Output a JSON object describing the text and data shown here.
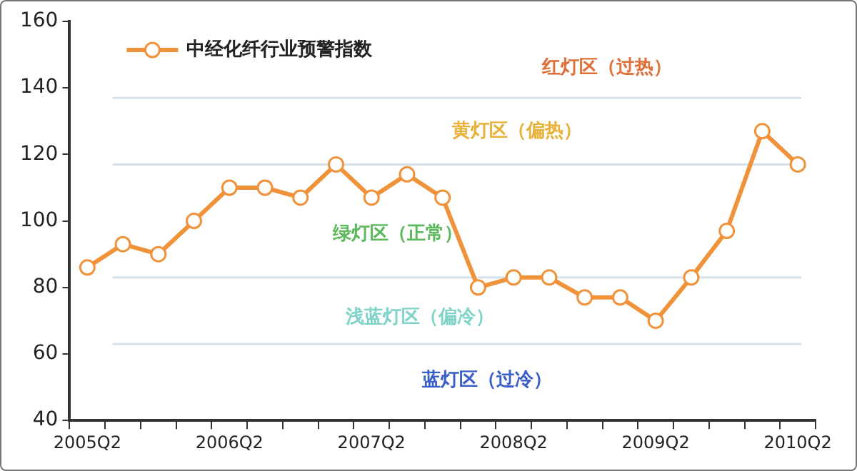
{
  "chart_data": {
    "type": "line",
    "categories": [
      "2005Q2",
      null,
      null,
      null,
      "2006Q2",
      null,
      null,
      null,
      "2007Q2",
      null,
      null,
      null,
      "2008Q2",
      null,
      null,
      null,
      "2009Q2",
      null,
      null,
      null,
      "2010Q2"
    ],
    "series": [
      {
        "name": "中经化纤行业预警指数",
        "color": "#f0923a",
        "values": [
          86,
          93,
          90,
          100,
          110,
          110,
          107,
          117,
          107,
          114,
          107,
          80,
          83,
          83,
          77,
          77,
          70,
          83,
          97,
          127,
          117
        ]
      }
    ],
    "ylim": [
      40,
      160
    ],
    "yticks": [
      40,
      60,
      80,
      100,
      120,
      140,
      160
    ],
    "grid": false,
    "legend": "top left",
    "marker": "circle",
    "line_style": "solid",
    "ref_lines": [
      {
        "axis": "y",
        "value": 137,
        "color": "#d6e2ea"
      },
      {
        "axis": "y",
        "value": 117,
        "color": "#d6e2ea"
      },
      {
        "axis": "y",
        "value": 83,
        "color": "#d6e2ea"
      },
      {
        "axis": "y",
        "value": 63,
        "color": "#d6e2ea"
      }
    ],
    "annotations": [
      "红灯区（过热）",
      "黄灯区（偏热）",
      "绿灯区（正常）",
      "浅蓝灯区（偏冷）",
      "蓝灯区（过冷）"
    ]
  }
}
